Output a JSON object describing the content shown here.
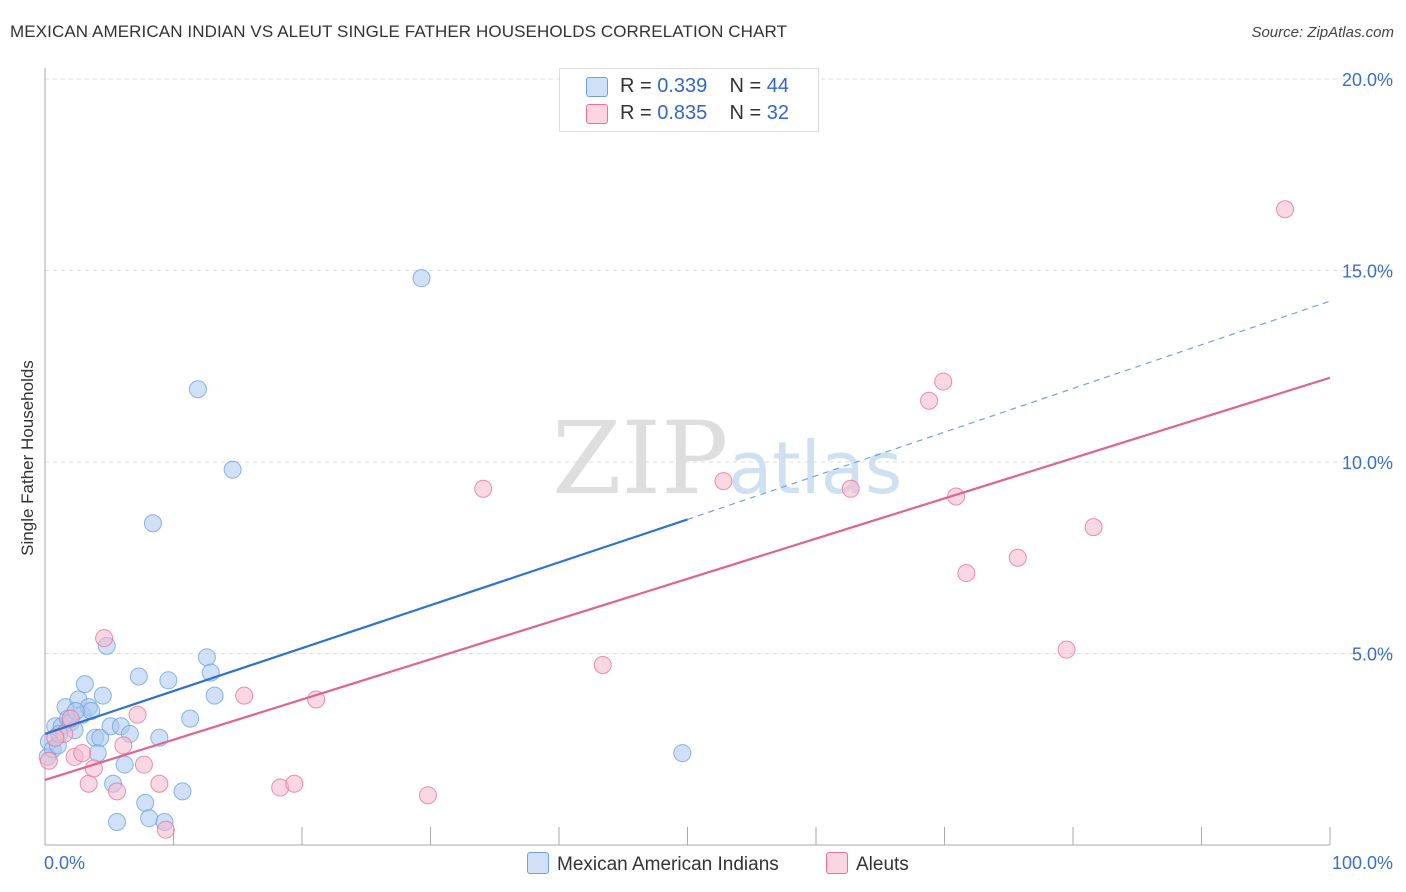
{
  "header": {
    "title": "MEXICAN AMERICAN INDIAN VS ALEUT SINGLE FATHER HOUSEHOLDS CORRELATION CHART",
    "source": "Source: ZipAtlas.com"
  },
  "watermark": {
    "zip": "ZIP",
    "atlas": "atlas"
  },
  "legend": {
    "rows": [
      {
        "r_label": "R = ",
        "r_value": "0.339",
        "n_label": "N = ",
        "n_value": "44",
        "color": "#aac8f0"
      },
      {
        "r_label": "R = ",
        "r_value": "0.835",
        "n_label": "N = ",
        "n_value": "32",
        "color": "#f6b8cc"
      }
    ]
  },
  "bottom_legend": [
    {
      "label": "Mexican American Indians",
      "color": "#aac8f0"
    },
    {
      "label": "Aleuts",
      "color": "#f6b8cc"
    }
  ],
  "chart_data": {
    "type": "scatter",
    "title": "MEXICAN AMERICAN INDIAN VS ALEUT SINGLE FATHER HOUSEHOLDS CORRELATION CHART",
    "xlabel": "",
    "ylabel": "Single Father Households",
    "xlim": [
      0,
      100
    ],
    "ylim": [
      0,
      20
    ],
    "x_tick_labels": [
      "0.0%",
      "100.0%"
    ],
    "y_tick_labels": [
      "5.0%",
      "10.0%",
      "15.0%",
      "20.0%"
    ],
    "y_ticks": [
      5,
      10,
      15,
      20
    ],
    "grid": true,
    "series": [
      {
        "name": "Mexican American Indians",
        "color": "#6fa3e0",
        "fill": "#aac8f0",
        "r": 0.339,
        "n": 44,
        "trend": {
          "x0": 0,
          "y0": 2.9,
          "x1": 50,
          "y1": 8.5,
          "dash_x1": 100,
          "dash_y1": 14.2
        },
        "points": [
          [
            0.2,
            2.3
          ],
          [
            0.3,
            2.7
          ],
          [
            0.6,
            2.5
          ],
          [
            0.8,
            3.1
          ],
          [
            1.0,
            2.6
          ],
          [
            1.3,
            3.1
          ],
          [
            1.6,
            3.6
          ],
          [
            1.8,
            3.3
          ],
          [
            2.0,
            3.2
          ],
          [
            2.3,
            3.0
          ],
          [
            2.6,
            3.8
          ],
          [
            2.9,
            3.4
          ],
          [
            3.1,
            4.2
          ],
          [
            3.4,
            3.6
          ],
          [
            3.6,
            3.5
          ],
          [
            3.9,
            2.8
          ],
          [
            4.1,
            2.4
          ],
          [
            4.3,
            2.8
          ],
          [
            4.5,
            3.9
          ],
          [
            4.8,
            5.2
          ],
          [
            5.1,
            3.1
          ],
          [
            5.3,
            1.6
          ],
          [
            5.6,
            0.6
          ],
          [
            5.9,
            3.1
          ],
          [
            6.2,
            2.1
          ],
          [
            6.6,
            2.9
          ],
          [
            7.3,
            4.4
          ],
          [
            7.8,
            1.1
          ],
          [
            8.1,
            0.7
          ],
          [
            8.4,
            8.4
          ],
          [
            8.9,
            2.8
          ],
          [
            9.3,
            0.6
          ],
          [
            9.6,
            4.3
          ],
          [
            10.7,
            1.4
          ],
          [
            11.3,
            3.3
          ],
          [
            11.9,
            11.9
          ],
          [
            12.6,
            4.9
          ],
          [
            12.9,
            4.5
          ],
          [
            13.2,
            3.9
          ],
          [
            14.6,
            9.8
          ],
          [
            29.3,
            14.8
          ],
          [
            49.6,
            2.4
          ],
          [
            1.1,
            2.9
          ],
          [
            2.4,
            3.5
          ]
        ]
      },
      {
        "name": "Aleuts",
        "color": "#e8739a",
        "fill": "#f6b8cc",
        "r": 0.835,
        "n": 32,
        "trend": {
          "x0": 0,
          "y0": 1.7,
          "x1": 100,
          "y1": 12.2
        },
        "points": [
          [
            0.3,
            2.2
          ],
          [
            1.5,
            2.9
          ],
          [
            2.0,
            3.3
          ],
          [
            2.3,
            2.3
          ],
          [
            2.9,
            2.4
          ],
          [
            3.4,
            1.6
          ],
          [
            3.8,
            2.0
          ],
          [
            4.6,
            5.4
          ],
          [
            5.6,
            1.4
          ],
          [
            6.1,
            2.6
          ],
          [
            7.2,
            3.4
          ],
          [
            7.7,
            2.1
          ],
          [
            8.9,
            1.6
          ],
          [
            9.4,
            0.4
          ],
          [
            15.5,
            3.9
          ],
          [
            18.3,
            1.5
          ],
          [
            19.4,
            1.6
          ],
          [
            21.1,
            3.8
          ],
          [
            29.8,
            1.3
          ],
          [
            34.1,
            9.3
          ],
          [
            43.4,
            4.7
          ],
          [
            52.8,
            9.5
          ],
          [
            62.7,
            9.3
          ],
          [
            68.8,
            11.6
          ],
          [
            69.9,
            12.1
          ],
          [
            70.9,
            9.1
          ],
          [
            71.7,
            7.1
          ],
          [
            75.7,
            7.5
          ],
          [
            79.5,
            5.1
          ],
          [
            81.6,
            8.3
          ],
          [
            96.5,
            16.6
          ],
          [
            0.8,
            2.8
          ]
        ]
      }
    ]
  }
}
